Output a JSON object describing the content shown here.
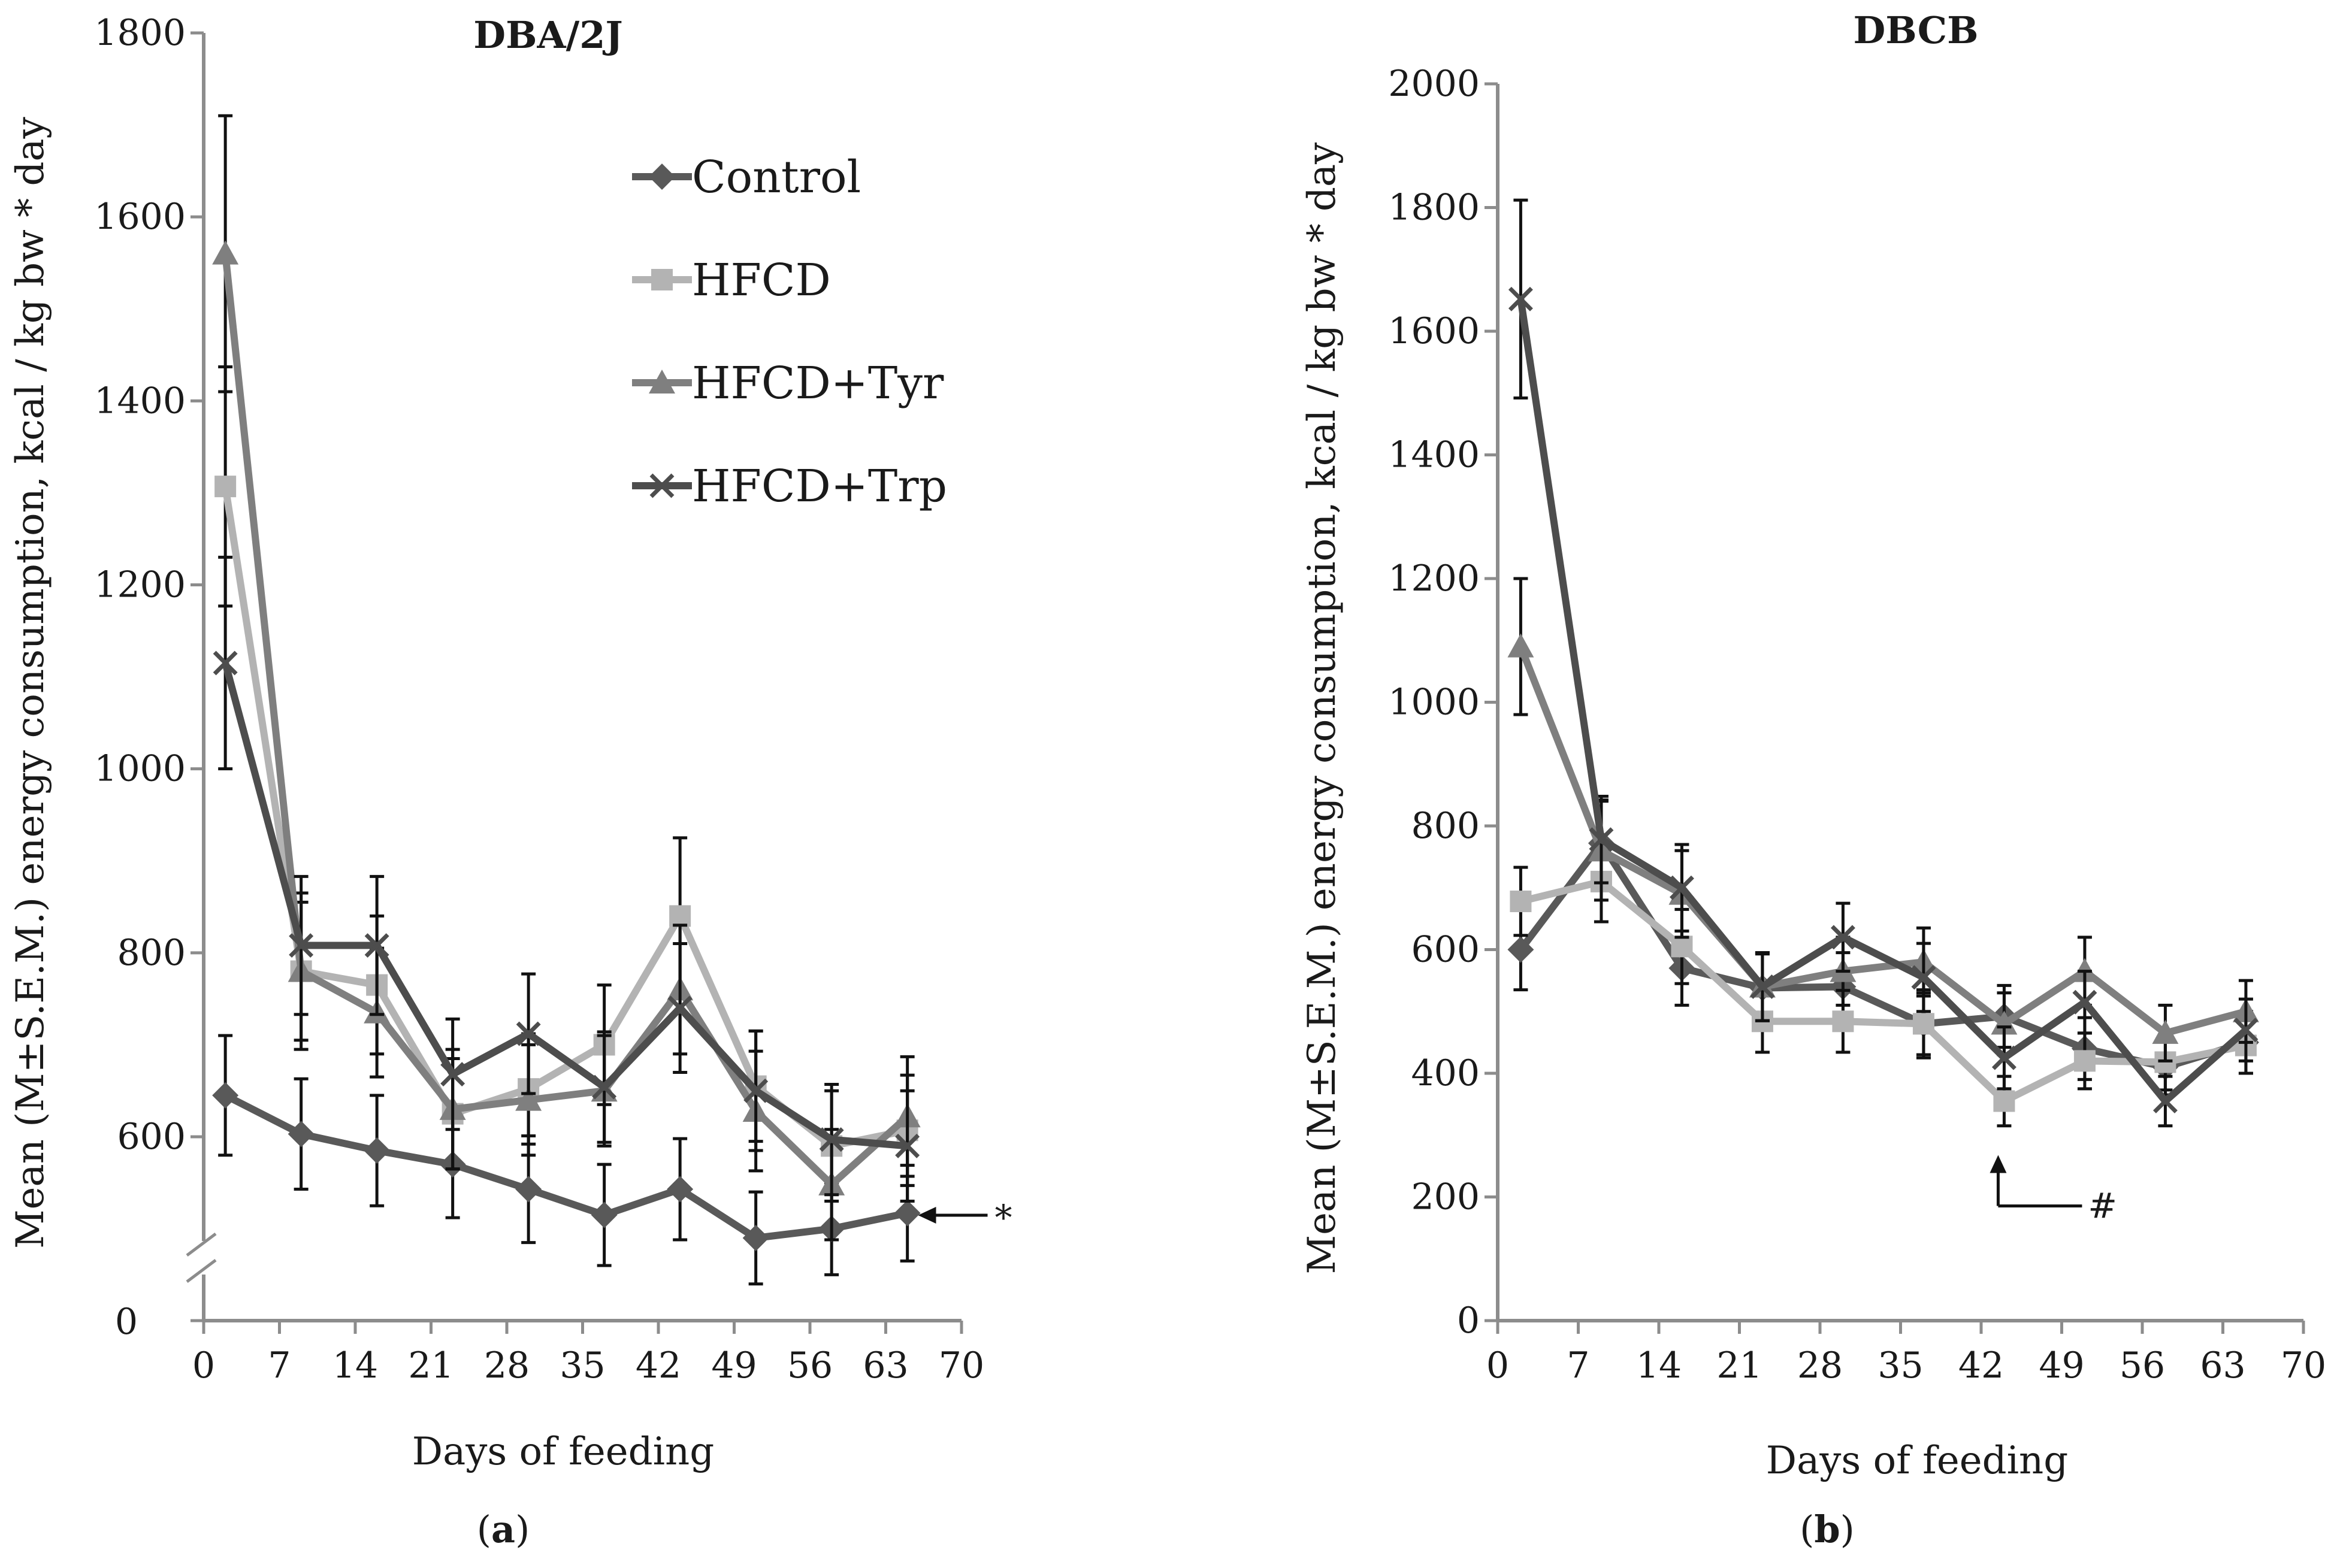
{
  "chart_data": [
    {
      "panel": "a",
      "type": "line",
      "title": "DBA/2J",
      "panel_label_prefix": "(",
      "panel_label_letter": "a",
      "panel_label_suffix": ")",
      "xlabel": "Days of feeding",
      "ylabel": "Mean (M±S.E.M.) energy consumption, kcal / kg bw * day",
      "xlim": [
        0,
        70
      ],
      "x_ticks": [
        0,
        7,
        14,
        21,
        28,
        35,
        42,
        49,
        56,
        63,
        70
      ],
      "y_ticks": [
        600,
        800,
        1000,
        1200,
        1400,
        1600,
        1800
      ],
      "y_zero_label": "0",
      "axis_break": true,
      "ylim": [
        430,
        1800
      ],
      "annotation": {
        "text": "*",
        "x": 63,
        "y": 516
      },
      "x": [
        2,
        9,
        16,
        23,
        30,
        37,
        44,
        51,
        58,
        65
      ],
      "series": [
        {
          "name": "Control",
          "marker": "diamond",
          "color": "#595959",
          "values": [
            645,
            603,
            585,
            570,
            543,
            515,
            543,
            490,
            500,
            517
          ],
          "errors": [
            65,
            60,
            60,
            58,
            58,
            55,
            55,
            50,
            50,
            52
          ]
        },
        {
          "name": "HFCD",
          "marker": "square",
          "color": "#b3b3b3",
          "values": [
            1307,
            780,
            765,
            625,
            652,
            700,
            840,
            655,
            590,
            607
          ],
          "errors": [
            130,
            85,
            75,
            60,
            60,
            65,
            85,
            60,
            60,
            60
          ]
        },
        {
          "name": "HFCD+Tyr",
          "marker": "triangle",
          "color": "#7f7f7f",
          "values": [
            1560,
            780,
            735,
            630,
            640,
            650,
            760,
            628,
            548,
            622
          ],
          "errors": [
            150,
            75,
            70,
            65,
            60,
            60,
            70,
            65,
            60,
            65
          ]
        },
        {
          "name": "HFCD+Trp",
          "marker": "x",
          "color": "#4d4d4d",
          "values": [
            1115,
            808,
            808,
            668,
            712,
            654,
            740,
            650,
            597,
            590
          ],
          "errors": [
            115,
            75,
            75,
            60,
            65,
            60,
            70,
            65,
            60,
            60
          ]
        }
      ]
    },
    {
      "panel": "b",
      "type": "line",
      "title": "DBCB",
      "panel_label_prefix": "(",
      "panel_label_letter": "b",
      "panel_label_suffix": ")",
      "xlabel": "Days of feeding",
      "ylabel": "Mean (M±S.E.M.) energy consumption, kcal / kg bw * day",
      "xlim": [
        0,
        70
      ],
      "x_ticks": [
        0,
        7,
        14,
        21,
        28,
        35,
        42,
        49,
        56,
        63,
        70
      ],
      "y_ticks": [
        0,
        200,
        400,
        600,
        800,
        1000,
        1200,
        1400,
        1600,
        1800,
        2000
      ],
      "ylim": [
        0,
        2000
      ],
      "annotation": {
        "text": "#",
        "x": 44,
        "y": 355
      },
      "x": [
        2,
        9,
        16,
        23,
        30,
        37,
        44,
        51,
        58,
        65
      ],
      "series": [
        {
          "name": "Control",
          "marker": "diamond",
          "color": "#595959",
          "values": [
            600,
            772,
            570,
            538,
            540,
            480,
            492,
            440,
            410,
            450
          ],
          "errors": [
            65,
            70,
            60,
            55,
            55,
            55,
            50,
            50,
            45,
            50
          ]
        },
        {
          "name": "HFCD",
          "marker": "square",
          "color": "#b3b3b3",
          "values": [
            678,
            710,
            605,
            484,
            484,
            480,
            355,
            420,
            418,
            445
          ],
          "errors": [
            55,
            65,
            60,
            50,
            50,
            50,
            40,
            45,
            45,
            45
          ]
        },
        {
          "name": "HFCD+Tyr",
          "marker": "triangle",
          "color": "#7f7f7f",
          "values": [
            1090,
            760,
            690,
            540,
            565,
            580,
            480,
            565,
            465,
            500
          ],
          "errors": [
            110,
            80,
            70,
            55,
            55,
            55,
            50,
            55,
            45,
            50
          ]
        },
        {
          "name": "HFCD+Trp",
          "marker": "x",
          "color": "#4d4d4d",
          "values": [
            1652,
            778,
            700,
            540,
            620,
            555,
            425,
            515,
            355,
            470
          ],
          "errors": [
            160,
            70,
            70,
            55,
            55,
            55,
            50,
            50,
            40,
            50
          ]
        }
      ]
    }
  ]
}
